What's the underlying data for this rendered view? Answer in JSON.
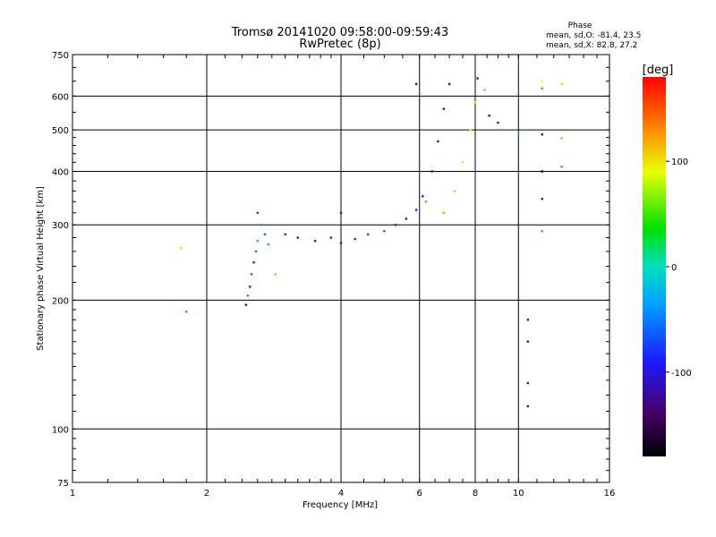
{
  "chart_data": {
    "type": "scatter",
    "title": "Tromsø 20141020 09:58:00-09:59:43",
    "subtitle": "RwPretec (8p)",
    "xlabel": "Frequency [MHz]",
    "ylabel": "Stationary phase Virtual Height [km]",
    "x_scale": "log",
    "y_scale": "log",
    "xlim": [
      1,
      16
    ],
    "ylim": [
      75,
      750
    ],
    "x_ticks": [
      1,
      2,
      4,
      6,
      8,
      10,
      16
    ],
    "y_ticks": [
      75,
      100,
      200,
      300,
      400,
      500,
      600,
      750
    ],
    "x_gridlines": [
      2,
      4,
      6,
      8,
      10
    ],
    "y_gridlines": [
      100,
      200,
      300,
      400,
      500,
      600
    ],
    "grid": true,
    "stats": {
      "heading": "Phase",
      "line_o": "mean, sd,O: -81.4, 23.5",
      "line_x": "mean, sd,X:  82.8, 27.2"
    },
    "colorbar": {
      "label": "[deg]",
      "range": [
        -180,
        180
      ],
      "ticks": [
        100,
        0,
        -100
      ]
    },
    "series": [
      {
        "points": [
          {
            "x": 1.75,
            "y": 265,
            "phase": 80
          },
          {
            "x": 1.8,
            "y": 188,
            "phase": 150
          },
          {
            "x": 2.45,
            "y": 195,
            "phase": -110
          },
          {
            "x": 2.47,
            "y": 205,
            "phase": -40
          },
          {
            "x": 2.5,
            "y": 215,
            "phase": -100
          },
          {
            "x": 2.52,
            "y": 230,
            "phase": -60
          },
          {
            "x": 2.55,
            "y": 245,
            "phase": -90
          },
          {
            "x": 2.58,
            "y": 260,
            "phase": -50
          },
          {
            "x": 2.6,
            "y": 275,
            "phase": -30
          },
          {
            "x": 2.6,
            "y": 320,
            "phase": -70
          },
          {
            "x": 2.65,
            "y": 300,
            "phase": -40
          },
          {
            "x": 2.7,
            "y": 285,
            "phase": -60
          },
          {
            "x": 2.75,
            "y": 270,
            "phase": -40
          },
          {
            "x": 2.85,
            "y": 230,
            "phase": 120
          },
          {
            "x": 3.0,
            "y": 285,
            "phase": -80
          },
          {
            "x": 3.2,
            "y": 280,
            "phase": -100
          },
          {
            "x": 3.5,
            "y": 275,
            "phase": -110
          },
          {
            "x": 3.8,
            "y": 280,
            "phase": -100
          },
          {
            "x": 4.0,
            "y": 272,
            "phase": -90
          },
          {
            "x": 4.0,
            "y": 320,
            "phase": -110
          },
          {
            "x": 4.3,
            "y": 278,
            "phase": -80
          },
          {
            "x": 4.6,
            "y": 285,
            "phase": -70
          },
          {
            "x": 5.0,
            "y": 290,
            "phase": -60
          },
          {
            "x": 5.3,
            "y": 300,
            "phase": -80
          },
          {
            "x": 5.6,
            "y": 310,
            "phase": -90
          },
          {
            "x": 5.9,
            "y": 325,
            "phase": -110
          },
          {
            "x": 5.9,
            "y": 640,
            "phase": -120
          },
          {
            "x": 6.1,
            "y": 350,
            "phase": -100
          },
          {
            "x": 6.2,
            "y": 340,
            "phase": 50
          },
          {
            "x": 6.4,
            "y": 400,
            "phase": -100
          },
          {
            "x": 6.6,
            "y": 470,
            "phase": -110
          },
          {
            "x": 6.8,
            "y": 560,
            "phase": -110
          },
          {
            "x": 7.0,
            "y": 640,
            "phase": -120
          },
          {
            "x": 6.8,
            "y": 320,
            "phase": 60
          },
          {
            "x": 7.2,
            "y": 360,
            "phase": 70
          },
          {
            "x": 7.5,
            "y": 420,
            "phase": 80
          },
          {
            "x": 7.8,
            "y": 500,
            "phase": 90
          },
          {
            "x": 8.0,
            "y": 580,
            "phase": 85
          },
          {
            "x": 8.1,
            "y": 660,
            "phase": -120
          },
          {
            "x": 8.4,
            "y": 620,
            "phase": 120
          },
          {
            "x": 8.6,
            "y": 540,
            "phase": -110
          },
          {
            "x": 9.0,
            "y": 520,
            "phase": -120
          },
          {
            "x": 10.0,
            "y": 495,
            "phase": -10
          },
          {
            "x": 10.5,
            "y": 180,
            "phase": -110
          },
          {
            "x": 10.5,
            "y": 160,
            "phase": -110
          },
          {
            "x": 10.5,
            "y": 128,
            "phase": -110
          },
          {
            "x": 10.5,
            "y": 113,
            "phase": -110
          },
          {
            "x": 11.3,
            "y": 650,
            "phase": 90
          },
          {
            "x": 11.3,
            "y": 625,
            "phase": 40
          },
          {
            "x": 11.3,
            "y": 488,
            "phase": -120
          },
          {
            "x": 11.3,
            "y": 400,
            "phase": -180
          },
          {
            "x": 11.3,
            "y": 345,
            "phase": -100
          },
          {
            "x": 11.3,
            "y": 290,
            "phase": -20
          },
          {
            "x": 12.5,
            "y": 640,
            "phase": 100
          },
          {
            "x": 12.5,
            "y": 478,
            "phase": 120
          },
          {
            "x": 12.5,
            "y": 410,
            "phase": 150
          }
        ]
      }
    ]
  }
}
